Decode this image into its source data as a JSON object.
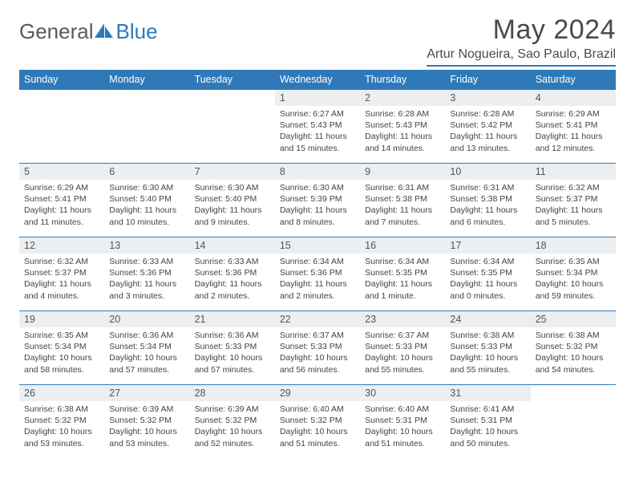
{
  "brand": {
    "part1": "General",
    "part2": "Blue"
  },
  "title": {
    "month": "May 2024",
    "location": "Artur Nogueira, Sao Paulo, Brazil"
  },
  "colors": {
    "accent": "#2f79b9",
    "header_bg": "#2f79b9",
    "header_text": "#ffffff",
    "daynum_bg": "#eceff1",
    "text": "#444444",
    "logo_gray": "#5a5a5a"
  },
  "weekdays": [
    "Sunday",
    "Monday",
    "Tuesday",
    "Wednesday",
    "Thursday",
    "Friday",
    "Saturday"
  ],
  "weeks": [
    [
      {
        "n": "",
        "empty": true
      },
      {
        "n": "",
        "empty": true
      },
      {
        "n": "",
        "empty": true
      },
      {
        "n": "1",
        "sr": "6:27 AM",
        "ss": "5:43 PM",
        "dl": "11 hours and 15 minutes."
      },
      {
        "n": "2",
        "sr": "6:28 AM",
        "ss": "5:43 PM",
        "dl": "11 hours and 14 minutes."
      },
      {
        "n": "3",
        "sr": "6:28 AM",
        "ss": "5:42 PM",
        "dl": "11 hours and 13 minutes."
      },
      {
        "n": "4",
        "sr": "6:29 AM",
        "ss": "5:41 PM",
        "dl": "11 hours and 12 minutes."
      }
    ],
    [
      {
        "n": "5",
        "sr": "6:29 AM",
        "ss": "5:41 PM",
        "dl": "11 hours and 11 minutes."
      },
      {
        "n": "6",
        "sr": "6:30 AM",
        "ss": "5:40 PM",
        "dl": "11 hours and 10 minutes."
      },
      {
        "n": "7",
        "sr": "6:30 AM",
        "ss": "5:40 PM",
        "dl": "11 hours and 9 minutes."
      },
      {
        "n": "8",
        "sr": "6:30 AM",
        "ss": "5:39 PM",
        "dl": "11 hours and 8 minutes."
      },
      {
        "n": "9",
        "sr": "6:31 AM",
        "ss": "5:38 PM",
        "dl": "11 hours and 7 minutes."
      },
      {
        "n": "10",
        "sr": "6:31 AM",
        "ss": "5:38 PM",
        "dl": "11 hours and 6 minutes."
      },
      {
        "n": "11",
        "sr": "6:32 AM",
        "ss": "5:37 PM",
        "dl": "11 hours and 5 minutes."
      }
    ],
    [
      {
        "n": "12",
        "sr": "6:32 AM",
        "ss": "5:37 PM",
        "dl": "11 hours and 4 minutes."
      },
      {
        "n": "13",
        "sr": "6:33 AM",
        "ss": "5:36 PM",
        "dl": "11 hours and 3 minutes."
      },
      {
        "n": "14",
        "sr": "6:33 AM",
        "ss": "5:36 PM",
        "dl": "11 hours and 2 minutes."
      },
      {
        "n": "15",
        "sr": "6:34 AM",
        "ss": "5:36 PM",
        "dl": "11 hours and 2 minutes."
      },
      {
        "n": "16",
        "sr": "6:34 AM",
        "ss": "5:35 PM",
        "dl": "11 hours and 1 minute."
      },
      {
        "n": "17",
        "sr": "6:34 AM",
        "ss": "5:35 PM",
        "dl": "11 hours and 0 minutes."
      },
      {
        "n": "18",
        "sr": "6:35 AM",
        "ss": "5:34 PM",
        "dl": "10 hours and 59 minutes."
      }
    ],
    [
      {
        "n": "19",
        "sr": "6:35 AM",
        "ss": "5:34 PM",
        "dl": "10 hours and 58 minutes."
      },
      {
        "n": "20",
        "sr": "6:36 AM",
        "ss": "5:34 PM",
        "dl": "10 hours and 57 minutes."
      },
      {
        "n": "21",
        "sr": "6:36 AM",
        "ss": "5:33 PM",
        "dl": "10 hours and 57 minutes."
      },
      {
        "n": "22",
        "sr": "6:37 AM",
        "ss": "5:33 PM",
        "dl": "10 hours and 56 minutes."
      },
      {
        "n": "23",
        "sr": "6:37 AM",
        "ss": "5:33 PM",
        "dl": "10 hours and 55 minutes."
      },
      {
        "n": "24",
        "sr": "6:38 AM",
        "ss": "5:33 PM",
        "dl": "10 hours and 55 minutes."
      },
      {
        "n": "25",
        "sr": "6:38 AM",
        "ss": "5:32 PM",
        "dl": "10 hours and 54 minutes."
      }
    ],
    [
      {
        "n": "26",
        "sr": "6:38 AM",
        "ss": "5:32 PM",
        "dl": "10 hours and 53 minutes."
      },
      {
        "n": "27",
        "sr": "6:39 AM",
        "ss": "5:32 PM",
        "dl": "10 hours and 53 minutes."
      },
      {
        "n": "28",
        "sr": "6:39 AM",
        "ss": "5:32 PM",
        "dl": "10 hours and 52 minutes."
      },
      {
        "n": "29",
        "sr": "6:40 AM",
        "ss": "5:32 PM",
        "dl": "10 hours and 51 minutes."
      },
      {
        "n": "30",
        "sr": "6:40 AM",
        "ss": "5:31 PM",
        "dl": "10 hours and 51 minutes."
      },
      {
        "n": "31",
        "sr": "6:41 AM",
        "ss": "5:31 PM",
        "dl": "10 hours and 50 minutes."
      },
      {
        "n": "",
        "empty": true
      }
    ]
  ],
  "labels": {
    "sunrise": "Sunrise:",
    "sunset": "Sunset:",
    "daylight": "Daylight:"
  }
}
